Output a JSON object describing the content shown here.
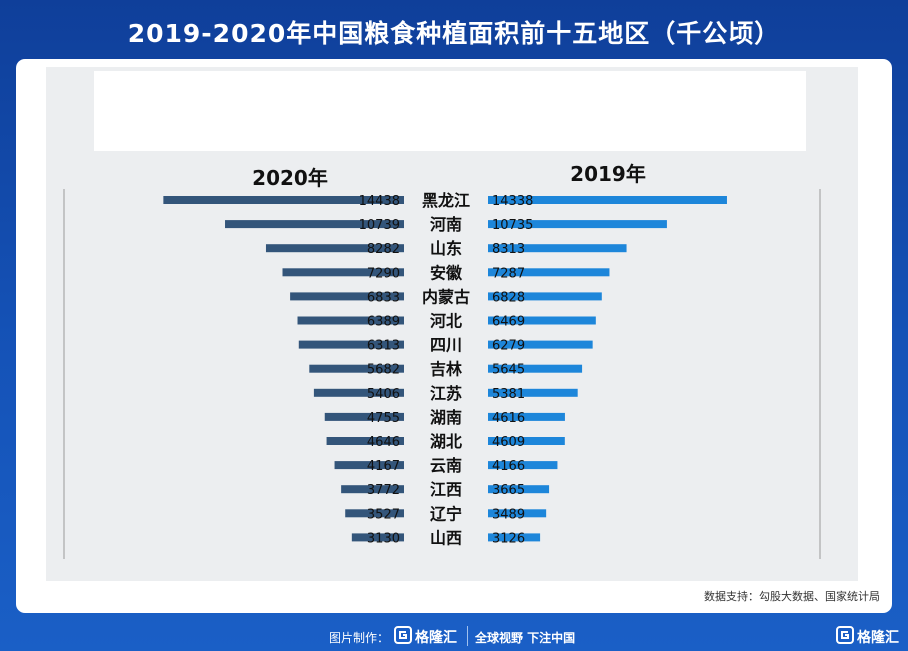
{
  "page": {
    "title": "2019-2020年中国粮食种植面积前十五地区（千公顷）"
  },
  "colors": {
    "bar_2020": "#33557a",
    "bar_2019": "#1d86da",
    "value_text": "#111111",
    "region_text": "#111111"
  },
  "chart_data": {
    "type": "bar",
    "orientation": "horizontal-butterfly",
    "title": "",
    "categories": [
      "黑龙江",
      "河南",
      "山东",
      "安徽",
      "内蒙古",
      "河北",
      "四川",
      "吉林",
      "江苏",
      "湖南",
      "湖北",
      "云南",
      "江西",
      "辽宁",
      "山西"
    ],
    "series": [
      {
        "name": "2020年",
        "values": [
          14438,
          10739,
          8282,
          7290,
          6833,
          6389,
          6313,
          5682,
          5406,
          4755,
          4646,
          4167,
          3772,
          3527,
          3130
        ]
      },
      {
        "name": "2019年",
        "values": [
          14338,
          10735,
          8313,
          7287,
          6828,
          6469,
          6279,
          5645,
          5381,
          4616,
          4609,
          4166,
          3665,
          3489,
          3126
        ]
      }
    ],
    "xlim": [
      0,
      15000
    ],
    "legend": "top"
  },
  "source": {
    "text": "数据支持：勾股大数据、国家统计局"
  },
  "footer": {
    "made_by": "图片制作：",
    "brand": "格隆汇",
    "slogan": "全球视野 下注中国",
    "corner_brand": "格隆汇"
  }
}
